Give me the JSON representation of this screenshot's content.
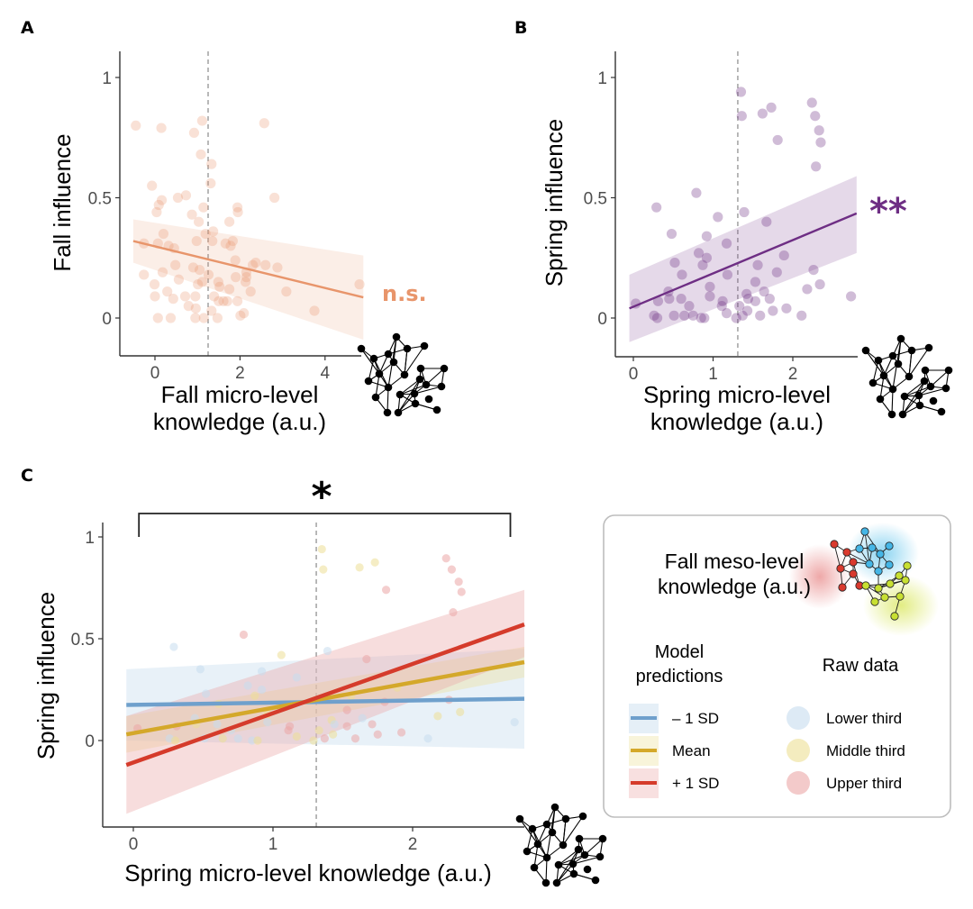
{
  "figure": {
    "colors": {
      "fall": "#e8956b",
      "spring": "#6e2e84",
      "minus1sd": "#6fa0cc",
      "mean": "#d4a82a",
      "plus1sd": "#d53b2b",
      "lower_third": "#c6dcee",
      "middle_third": "#ecdf95",
      "upper_third": "#eba6a6"
    }
  },
  "chart_data": [
    {
      "id": "A",
      "panel_label": "A",
      "type": "scatter",
      "xlabel": [
        "Fall micro-level",
        "knowledge (a.u.)"
      ],
      "ylabel": "Fall influence",
      "xlim": [
        -0.83,
        4.95
      ],
      "ylim": [
        -0.157,
        1.11
      ],
      "xticks": [
        0,
        2,
        4
      ],
      "xtick_labels": [
        "0",
        "2",
        "4"
      ],
      "yticks": [
        0,
        0.5,
        1
      ],
      "ytick_labels": [
        "0",
        "0.5",
        "1"
      ],
      "grid": false,
      "reference_line_x": 1.25,
      "significance": "n.s.",
      "fit": {
        "x": [
          -0.51,
          4.9
        ],
        "y": [
          0.32,
          0.086
        ],
        "ci_lower": [
          0.23,
          -0.09
        ],
        "ci_upper": [
          0.41,
          0.26
        ]
      },
      "points": [
        [
          -0.45,
          0.8
        ],
        [
          0.15,
          0.79
        ],
        [
          1.11,
          0.82
        ],
        [
          0.92,
          0.77
        ],
        [
          2.57,
          0.81
        ],
        [
          1.08,
          0.68
        ],
        [
          1.33,
          0.64
        ],
        [
          1.31,
          0.56
        ],
        [
          -0.07,
          0.55
        ],
        [
          0.54,
          0.5
        ],
        [
          0.73,
          0.51
        ],
        [
          0.16,
          0.49
        ],
        [
          0.09,
          0.47
        ],
        [
          0.04,
          0.44
        ],
        [
          1.14,
          0.46
        ],
        [
          1.94,
          0.46
        ],
        [
          1.95,
          0.44
        ],
        [
          2.81,
          0.5
        ],
        [
          0.87,
          0.43
        ],
        [
          1.03,
          0.4
        ],
        [
          1.75,
          0.4
        ],
        [
          0.2,
          0.35
        ],
        [
          1.19,
          0.35
        ],
        [
          1.37,
          0.36
        ],
        [
          0.98,
          0.32
        ],
        [
          1.35,
          0.32
        ],
        [
          1.66,
          0.31
        ],
        [
          1.83,
          0.32
        ],
        [
          1.78,
          0.3
        ],
        [
          -0.26,
          0.31
        ],
        [
          0.07,
          0.31
        ],
        [
          0.32,
          0.3
        ],
        [
          0.45,
          0.29
        ],
        [
          1.89,
          0.24
        ],
        [
          2.37,
          0.23
        ],
        [
          2.3,
          0.22
        ],
        [
          2.6,
          0.22
        ],
        [
          2.88,
          0.21
        ],
        [
          0.48,
          0.22
        ],
        [
          -0.26,
          0.18
        ],
        [
          0.18,
          0.19
        ],
        [
          0.9,
          0.21
        ],
        [
          1.05,
          0.2
        ],
        [
          1.26,
          0.18
        ],
        [
          1.9,
          0.17
        ],
        [
          2.15,
          0.19
        ],
        [
          2.15,
          0.17
        ],
        [
          2.13,
          0.15
        ],
        [
          -0.01,
          0.14
        ],
        [
          0.56,
          0.16
        ],
        [
          1.01,
          0.14
        ],
        [
          1.11,
          0.15
        ],
        [
          1.49,
          0.15
        ],
        [
          4.81,
          0.14
        ],
        [
          1.52,
          0.13
        ],
        [
          0.0,
          0.09
        ],
        [
          0.29,
          0.11
        ],
        [
          0.43,
          0.08
        ],
        [
          0.71,
          0.09
        ],
        [
          0.95,
          0.09
        ],
        [
          1.75,
          0.12
        ],
        [
          3.09,
          0.11
        ],
        [
          2.25,
          0.11
        ],
        [
          1.5,
          0.07
        ],
        [
          1.39,
          0.09
        ],
        [
          1.61,
          0.07
        ],
        [
          1.7,
          0.07
        ],
        [
          1.94,
          0.07
        ],
        [
          0.79,
          0.05
        ],
        [
          0.96,
          0.04
        ],
        [
          1.33,
          0.03
        ],
        [
          3.75,
          0.03
        ],
        [
          0.07,
          0.0
        ],
        [
          0.37,
          0.0
        ],
        [
          0.95,
          0.0
        ],
        [
          1.15,
          0.0
        ],
        [
          1.47,
          0.0
        ],
        [
          2.01,
          0.01
        ],
        [
          2.09,
          0.02
        ]
      ]
    },
    {
      "id": "B",
      "panel_label": "B",
      "type": "scatter",
      "xlabel": [
        "Spring micro-level",
        "knowledge (a.u.)"
      ],
      "ylabel": "Spring influence",
      "xlim": [
        -0.23,
        2.82
      ],
      "ylim": [
        -0.157,
        1.11
      ],
      "xticks": [
        0,
        1,
        2
      ],
      "xtick_labels": [
        "0",
        "1",
        "2"
      ],
      "yticks": [
        0,
        0.5,
        1
      ],
      "ytick_labels": [
        "0",
        "0.5",
        "1"
      ],
      "grid": false,
      "reference_line_x": 1.31,
      "significance": "**",
      "fit": {
        "x": [
          -0.05,
          2.8
        ],
        "y": [
          0.04,
          0.435
        ],
        "ci_lower": [
          -0.1,
          0.27
        ],
        "ci_upper": [
          0.18,
          0.59
        ]
      },
      "points": [
        [
          1.35,
          0.94,
          "m"
        ],
        [
          1.36,
          0.84,
          "m"
        ],
        [
          1.62,
          0.85,
          "m"
        ],
        [
          1.73,
          0.875,
          "m"
        ],
        [
          1.81,
          0.74,
          "u"
        ],
        [
          2.24,
          0.895,
          "u"
        ],
        [
          2.28,
          0.84,
          "u"
        ],
        [
          2.33,
          0.78,
          "u"
        ],
        [
          2.35,
          0.73,
          "u"
        ],
        [
          2.29,
          0.63,
          "u"
        ],
        [
          0.79,
          0.52,
          "u"
        ],
        [
          0.29,
          0.46,
          "l"
        ],
        [
          1.06,
          0.42,
          "m"
        ],
        [
          1.39,
          0.44,
          "l"
        ],
        [
          1.67,
          0.4,
          "u"
        ],
        [
          0.48,
          0.35,
          "l"
        ],
        [
          0.92,
          0.34,
          "l"
        ],
        [
          1.17,
          0.31,
          "l"
        ],
        [
          0.82,
          0.27,
          "l"
        ],
        [
          0.92,
          0.25,
          "l"
        ],
        [
          1.89,
          0.26,
          "m"
        ],
        [
          0.52,
          0.23,
          "l"
        ],
        [
          0.87,
          0.22,
          "m"
        ],
        [
          1.56,
          0.22,
          "m"
        ],
        [
          0.61,
          0.18,
          "m"
        ],
        [
          1.18,
          0.18,
          "l"
        ],
        [
          1.8,
          0.19,
          "u"
        ],
        [
          2.26,
          0.2,
          "u"
        ],
        [
          2.34,
          0.14,
          "m"
        ],
        [
          2.18,
          0.12,
          "m"
        ],
        [
          2.73,
          0.09,
          "l"
        ],
        [
          0.44,
          0.11,
          "l"
        ],
        [
          0.96,
          0.13,
          "m"
        ],
        [
          1.53,
          0.15,
          "u"
        ],
        [
          1.64,
          0.11,
          "l"
        ],
        [
          0.45,
          0.08,
          "m"
        ],
        [
          0.6,
          0.08,
          "l"
        ],
        [
          0.96,
          0.09,
          "l"
        ],
        [
          1.12,
          0.07,
          "u"
        ],
        [
          1.42,
          0.1,
          "m"
        ],
        [
          1.44,
          0.08,
          "l"
        ],
        [
          1.53,
          0.07,
          "u"
        ],
        [
          1.71,
          0.08,
          "u"
        ],
        [
          0.31,
          0.07,
          "u"
        ],
        [
          0.7,
          0.05,
          "l"
        ],
        [
          1.11,
          0.05,
          "u"
        ],
        [
          1.33,
          0.05,
          "m"
        ],
        [
          1.43,
          0.03,
          "m"
        ],
        [
          1.92,
          0.04,
          "u"
        ],
        [
          1.75,
          0.03,
          "u"
        ],
        [
          0.03,
          0.06,
          "u"
        ],
        [
          0.26,
          0.01,
          "l"
        ],
        [
          0.3,
          0.0,
          "m"
        ],
        [
          0.51,
          0.01,
          "l"
        ],
        [
          0.64,
          0.01,
          "m"
        ],
        [
          0.75,
          0.01,
          "l"
        ],
        [
          0.85,
          0.0,
          "l"
        ],
        [
          0.89,
          0.0,
          "m"
        ],
        [
          1.17,
          0.02,
          "m"
        ],
        [
          1.29,
          0.0,
          "m"
        ],
        [
          1.37,
          0.01,
          "u"
        ],
        [
          1.59,
          0.01,
          "u"
        ],
        [
          2.11,
          0.01,
          "l"
        ]
      ]
    },
    {
      "id": "C",
      "panel_label": "C",
      "type": "scatter",
      "xlabel": [
        "Spring micro-level knowledge (a.u.)"
      ],
      "ylabel": "Spring influence",
      "xlim": [
        -0.22,
        2.82
      ],
      "ylim": [
        -0.42,
        1.05
      ],
      "xticks": [
        0,
        1,
        2
      ],
      "xtick_labels": [
        "0",
        "1",
        "2"
      ],
      "yticks": [
        0,
        0.5,
        1
      ],
      "ytick_labels": [
        "0",
        "0.5",
        "1"
      ],
      "grid": false,
      "reference_line_x": 1.31,
      "significance": "*",
      "bracket_x": [
        0.04,
        2.7
      ],
      "points_source": "B",
      "series": [
        {
          "name": "− 1 SD",
          "key": "minus1sd",
          "x": [
            -0.05,
            2.8
          ],
          "y": [
            0.175,
            0.205
          ],
          "ci_lower": [
            0.0,
            -0.04
          ],
          "ci_upper": [
            0.35,
            0.45
          ]
        },
        {
          "name": "Mean",
          "key": "mean",
          "x": [
            -0.05,
            2.8
          ],
          "y": [
            0.03,
            0.385
          ],
          "ci_lower": [
            -0.06,
            0.31
          ],
          "ci_upper": [
            0.12,
            0.46
          ]
        },
        {
          "name": "+ 1 SD",
          "key": "plus1sd",
          "x": [
            -0.05,
            2.8
          ],
          "y": [
            -0.12,
            0.57
          ],
          "ci_lower": [
            -0.36,
            0.41
          ],
          "ci_upper": [
            0.12,
            0.74
          ]
        }
      ]
    }
  ],
  "legend": {
    "title": [
      "Fall meso-level",
      "knowledge (a.u.)"
    ],
    "model_header": [
      "Model",
      "predictions"
    ],
    "raw_header": "Raw data",
    "model_items": [
      {
        "label": "– 1 SD",
        "key": "minus1sd"
      },
      {
        "label": "Mean",
        "key": "mean"
      },
      {
        "label": "+ 1 SD",
        "key": "plus1sd"
      }
    ],
    "raw_items": [
      {
        "label": "Lower third",
        "key": "lower_third"
      },
      {
        "label": "Middle third",
        "key": "middle_third"
      },
      {
        "label": "Upper third",
        "key": "upper_third"
      }
    ]
  }
}
